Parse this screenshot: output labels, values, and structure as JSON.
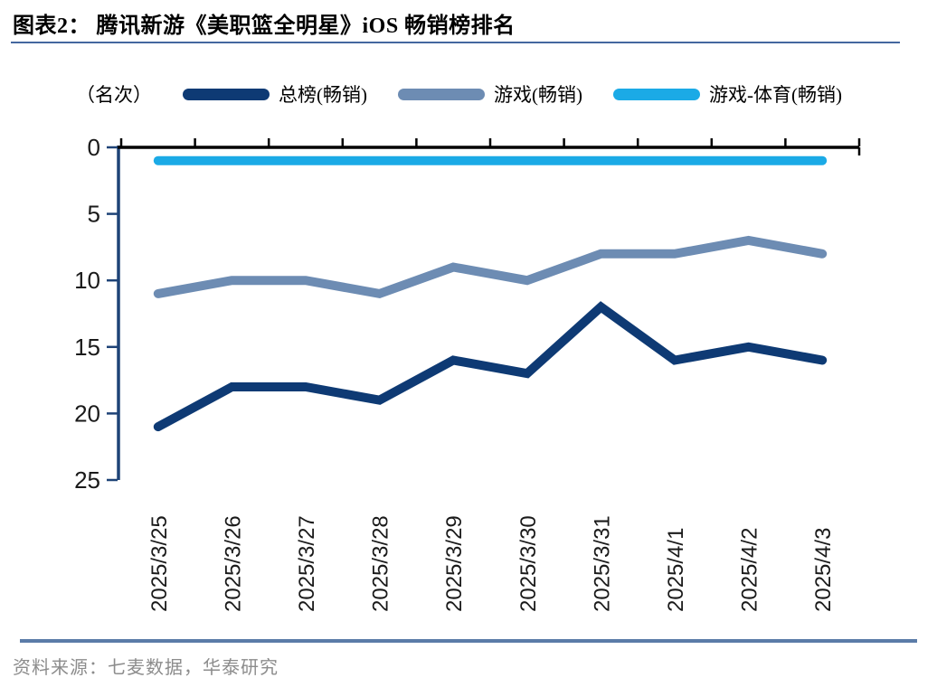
{
  "header": {
    "title": "图表2：  腾讯新游《美职篮全明星》iOS 畅销榜排名"
  },
  "legend": {
    "axis_unit": "（名次）",
    "items": [
      {
        "label": "总榜(畅销)",
        "color": "#0E3A74"
      },
      {
        "label": "游戏(畅销)",
        "color": "#6D8CB3"
      },
      {
        "label": "游戏-体育(畅销)",
        "color": "#1BAAE6"
      }
    ]
  },
  "chart_data": {
    "type": "line",
    "title": "腾讯新游《美职篮全明星》iOS 畅销榜排名",
    "ylabel": "（名次）",
    "xlabel": "",
    "x": [
      "2025/3/25",
      "2025/3/26",
      "2025/3/27",
      "2025/3/28",
      "2025/3/29",
      "2025/3/30",
      "2025/3/31",
      "2025/4/1",
      "2025/4/2",
      "2025/4/3"
    ],
    "series": [
      {
        "name": "总榜(畅销)",
        "color": "#0E3A74",
        "values": [
          21,
          18,
          18,
          19,
          16,
          17,
          12,
          16,
          15,
          16
        ]
      },
      {
        "name": "游戏(畅销)",
        "color": "#6D8CB3",
        "values": [
          11,
          10,
          10,
          11,
          9,
          10,
          8,
          8,
          7,
          8
        ]
      },
      {
        "name": "游戏-体育(畅销)",
        "color": "#1BAAE6",
        "values": [
          1,
          1,
          1,
          1,
          1,
          1,
          1,
          1,
          1,
          1
        ]
      }
    ],
    "y_ticks": [
      0,
      5,
      10,
      15,
      20,
      25
    ],
    "ylim": [
      0,
      25
    ],
    "y_inverted": true,
    "grid": false,
    "legend_position": "top",
    "axis_colors": {
      "y_axis": "#1E4377",
      "top_axis": "#000000",
      "tick_label": "#1a1a1a"
    }
  },
  "footer": {
    "source": "资料来源：七麦数据，华泰研究"
  }
}
